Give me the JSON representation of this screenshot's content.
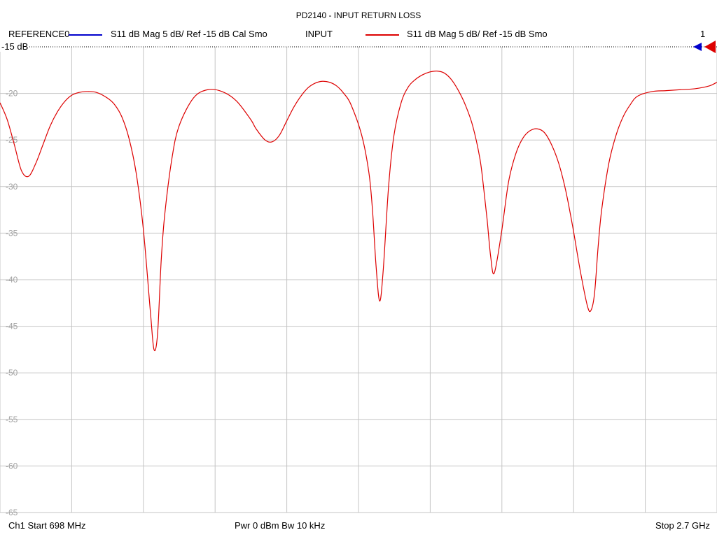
{
  "title": "PD2140 - INPUT RETURN LOSS",
  "legend": {
    "ref_name": "REFERENCE0",
    "ref_desc": "S11  dB Mag  5 dB/ Ref -15 dB  Cal Smo",
    "ref_color": "#0000cc",
    "input_name": "INPUT",
    "input_desc": "S11  dB Mag  5 dB/ Ref -15 dB  Smo",
    "input_color": "#dd0000"
  },
  "ref_level_label": "-15 dB",
  "marker_number": "1",
  "footer": {
    "start": "Ch1  Start  698 MHz",
    "mid": "Pwr  0 dBm  Bw  10 kHz",
    "stop": "Stop  2.7 GHz"
  },
  "chart_data": {
    "type": "line",
    "title": "PD2140 - INPUT RETURN LOSS",
    "xlabel": "",
    "ylabel": "",
    "x_start_mhz": 698,
    "x_stop_mhz": 2700,
    "ylim": [
      -65,
      -15
    ],
    "y_ticks": [
      -15,
      -20,
      -25,
      -30,
      -35,
      -40,
      -45,
      -50,
      -55,
      -60,
      -65
    ],
    "x_divisions": 10,
    "grid": true,
    "series": [
      {
        "name": "INPUT",
        "color": "#dd0000",
        "x": [
          698,
          718,
          738,
          758,
          778,
          798,
          818,
          838,
          858,
          878,
          898,
          918,
          938,
          968,
          998,
          1018,
          1038,
          1058,
          1078,
          1098,
          1118,
          1128,
          1138,
          1148,
          1158,
          1178,
          1198,
          1238,
          1278,
          1318,
          1358,
          1398,
          1413,
          1438,
          1458,
          1478,
          1498,
          1518,
          1538,
          1558,
          1578,
          1598,
          1618,
          1638,
          1658,
          1678,
          1708,
          1728,
          1738,
          1748,
          1758,
          1768,
          1783,
          1798,
          1818,
          1838,
          1858,
          1878,
          1898,
          1918,
          1938,
          1958,
          1978,
          1998,
          2018,
          2038,
          2048,
          2058,
          2068,
          2078,
          2098,
          2118,
          2138,
          2158,
          2178,
          2198,
          2218,
          2238,
          2258,
          2278,
          2298,
          2318,
          2338,
          2348,
          2358,
          2368,
          2378,
          2398,
          2418,
          2438,
          2458,
          2478,
          2518,
          2558,
          2598,
          2638,
          2678,
          2700
        ],
        "values": [
          -21.0,
          -22.8,
          -25.5,
          -28.3,
          -28.9,
          -27.5,
          -25.5,
          -23.5,
          -22.0,
          -20.9,
          -20.2,
          -19.9,
          -19.8,
          -19.9,
          -20.5,
          -21.2,
          -22.5,
          -24.8,
          -28.5,
          -34.5,
          -43.5,
          -47.5,
          -45.8,
          -38.0,
          -33.0,
          -27.0,
          -23.5,
          -20.5,
          -19.6,
          -19.8,
          -20.8,
          -22.8,
          -23.8,
          -25.0,
          -25.2,
          -24.5,
          -23.0,
          -21.5,
          -20.3,
          -19.4,
          -18.9,
          -18.7,
          -18.8,
          -19.2,
          -20.0,
          -21.2,
          -24.5,
          -28.5,
          -32.5,
          -38.5,
          -42.3,
          -39.0,
          -30.0,
          -24.5,
          -21.0,
          -19.3,
          -18.5,
          -18.0,
          -17.7,
          -17.6,
          -17.8,
          -18.5,
          -19.7,
          -21.3,
          -23.5,
          -27.0,
          -30.0,
          -33.5,
          -37.5,
          -39.3,
          -35.0,
          -29.5,
          -26.5,
          -24.8,
          -24.0,
          -23.8,
          -24.2,
          -25.5,
          -27.5,
          -30.5,
          -34.5,
          -39.0,
          -42.8,
          -43.3,
          -41.5,
          -36.5,
          -32.5,
          -27.5,
          -24.5,
          -22.5,
          -21.2,
          -20.3,
          -19.8,
          -19.7,
          -19.6,
          -19.5,
          -19.2,
          -18.8
        ]
      }
    ]
  }
}
